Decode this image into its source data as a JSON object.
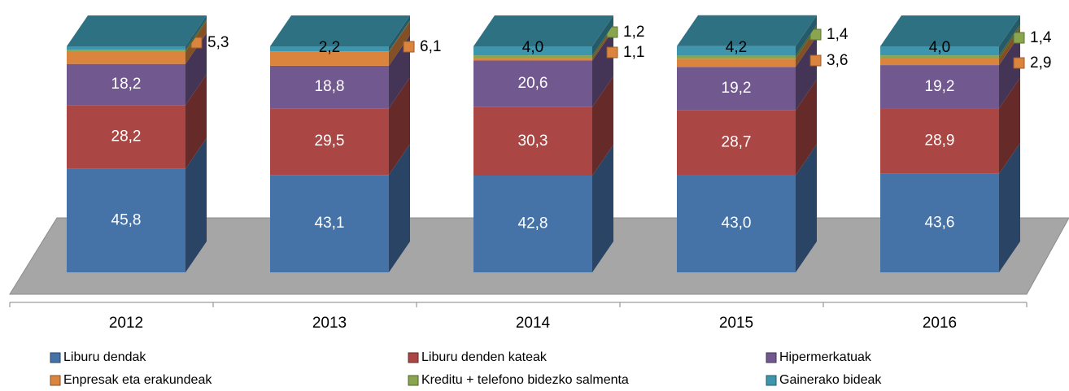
{
  "chart_data": {
    "type": "bar3d_stacked",
    "categories": [
      "2012",
      "2013",
      "2014",
      "2015",
      "2016"
    ],
    "ylim": [
      0,
      100
    ],
    "series": [
      {
        "name": "Liburu dendak",
        "color": "#4572a7",
        "values": [
          45.8,
          43.1,
          42.8,
          43.0,
          43.6
        ],
        "value_labels": [
          "45,8",
          "43,1",
          "42,8",
          "43,0",
          "43,6"
        ]
      },
      {
        "name": "Liburu denden kateak",
        "color": "#aa4643",
        "values": [
          28.2,
          29.5,
          30.3,
          28.7,
          28.9
        ],
        "value_labels": [
          "28,2",
          "29,5",
          "30,3",
          "28,7",
          "28,9"
        ]
      },
      {
        "name": "Hipermerkatuak",
        "color": "#71588f",
        "values": [
          18.2,
          18.8,
          20.6,
          19.2,
          19.2
        ],
        "value_labels": [
          "18,2",
          "18,8",
          "20,6",
          "19,2",
          "19,2"
        ]
      },
      {
        "name": "Enpresak eta erakundeak",
        "color": "#db843d",
        "values": [
          5.3,
          6.1,
          1.1,
          3.6,
          2.9
        ],
        "value_labels": [
          "5,3",
          "6,1",
          "1,1",
          "3,6",
          "2,9"
        ]
      },
      {
        "name": "Kreditu + telefono bidezko salmenta",
        "color": "#89a54e",
        "values": [
          1.0,
          0.3,
          1.2,
          1.4,
          1.4
        ],
        "value_labels": [
          null,
          null,
          "1,2",
          "1,4",
          "1,4"
        ]
      },
      {
        "name": "Gainerako bideak",
        "color": "#3d96ae",
        "values": [
          1.5,
          2.2,
          4.0,
          4.2,
          4.0
        ],
        "value_labels": [
          null,
          "2,2",
          "4,0",
          "4,2",
          "4,0"
        ]
      }
    ]
  }
}
